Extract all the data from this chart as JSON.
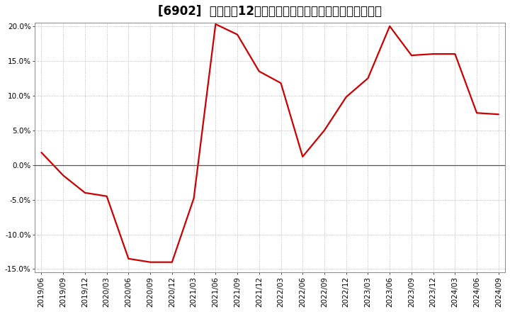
{
  "title": "[6902]  売上高の12か月移動合計の対前年同期増減率の推移",
  "dates": [
    "2019/06",
    "2019/09",
    "2019/12",
    "2020/03",
    "2020/06",
    "2020/09",
    "2020/12",
    "2021/03",
    "2021/06",
    "2021/09",
    "2021/12",
    "2022/03",
    "2022/06",
    "2022/09",
    "2022/12",
    "2023/03",
    "2023/06",
    "2023/09",
    "2023/12",
    "2024/03",
    "2024/06",
    "2024/09"
  ],
  "values": [
    1.8,
    -1.5,
    -4.0,
    -4.5,
    -13.5,
    -14.0,
    -14.0,
    -4.8,
    20.3,
    18.8,
    13.5,
    11.8,
    1.2,
    5.0,
    9.8,
    12.5,
    20.0,
    15.8,
    16.0,
    16.0,
    7.5,
    7.3
  ],
  "line_color": "#cc0000",
  "bg_color": "#ffffff",
  "plot_bg_color": "#ffffff",
  "grid_color": "#aaaaaa",
  "zero_line_color": "#555555",
  "ylim_min": -15.0,
  "ylim_max": 20.0,
  "yticks": [
    -15.0,
    -10.0,
    -5.0,
    0.0,
    5.0,
    10.0,
    15.0,
    20.0
  ],
  "title_fontsize": 12,
  "tick_fontsize": 7.5,
  "line_width": 1.6
}
